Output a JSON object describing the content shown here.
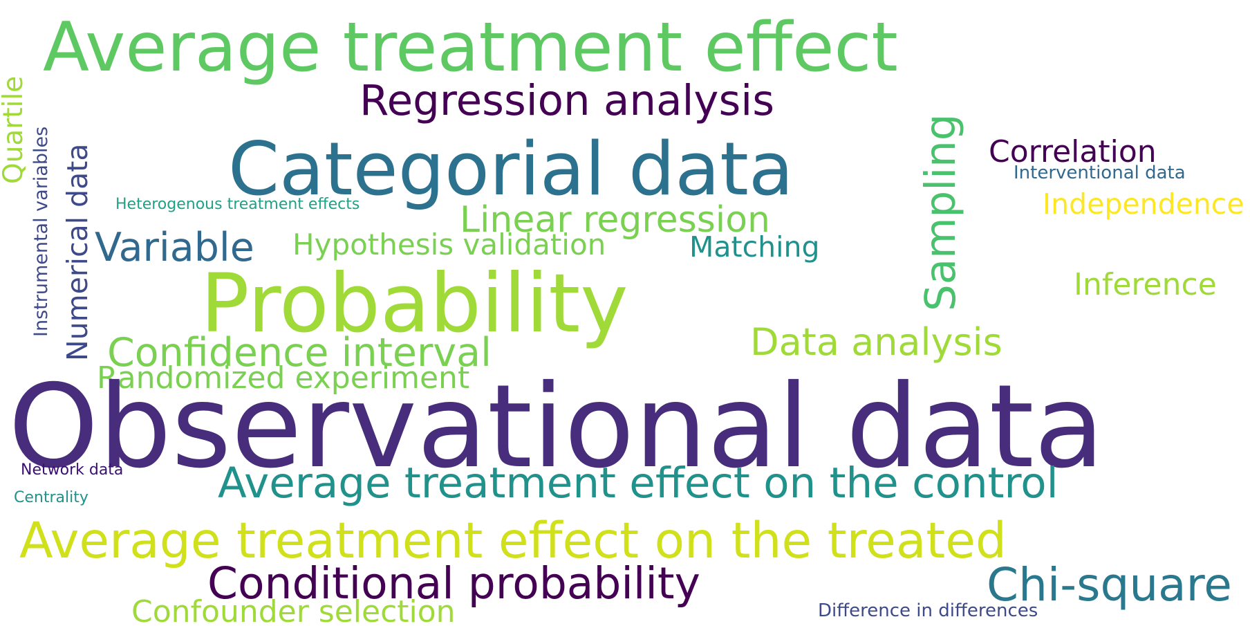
{
  "words": {
    "ate": {
      "text": "Average treatment effect",
      "color": "#5ec962"
    },
    "reg": {
      "text": "Regression analysis",
      "color": "#440154"
    },
    "cat": {
      "text": "Categorial data",
      "color": "#2c728e"
    },
    "linreg": {
      "text": "Linear regression",
      "color": "#7ad151"
    },
    "var": {
      "text": "Variable",
      "color": "#31688e"
    },
    "hyp": {
      "text": "Hypothesis validation",
      "color": "#7ad151"
    },
    "match": {
      "text": "Matching",
      "color": "#21918c"
    },
    "prob": {
      "text": "Probability",
      "color": "#a0da39"
    },
    "conf": {
      "text": "Confidence interval",
      "color": "#7ad151"
    },
    "rand": {
      "text": "Randomized experiment",
      "color": "#7ad151"
    },
    "obs": {
      "text": "Observational data",
      "color": "#472d7b"
    },
    "dana": {
      "text": "Data analysis",
      "color": "#a0da39"
    },
    "corr": {
      "text": "Correlation",
      "color": "#440154"
    },
    "interv": {
      "text": "Interventional data",
      "color": "#31688e"
    },
    "indep": {
      "text": "Independence",
      "color": "#fde725"
    },
    "infer": {
      "text": "Inference",
      "color": "#a0da39"
    },
    "het": {
      "text": "Heterogenous treatment effects",
      "color": "#1fa187"
    },
    "atc": {
      "text": "Average treatment effect on the control",
      "color": "#21918c"
    },
    "net": {
      "text": "Network data",
      "color": "#3b0f70"
    },
    "cent": {
      "text": "Centrality",
      "color": "#21918c"
    },
    "att": {
      "text": "Average treatment effect on the treated",
      "color": "#d0e11c"
    },
    "condp": {
      "text": "Conditional probability",
      "color": "#440154"
    },
    "chi": {
      "text": "Chi-square",
      "color": "#2a788e"
    },
    "diff": {
      "text": "Difference in differences",
      "color": "#3e4989"
    },
    "confsel": {
      "text": "Confounder selection",
      "color": "#a0da39"
    },
    "quart": {
      "text": "Quartile",
      "color": "#a0da39"
    },
    "instr": {
      "text": "Instrumental variables",
      "color": "#3e4989"
    },
    "num": {
      "text": "Numerical data",
      "color": "#3e4989"
    },
    "samp": {
      "text": "Sampling",
      "color": "#4ac16d"
    }
  }
}
